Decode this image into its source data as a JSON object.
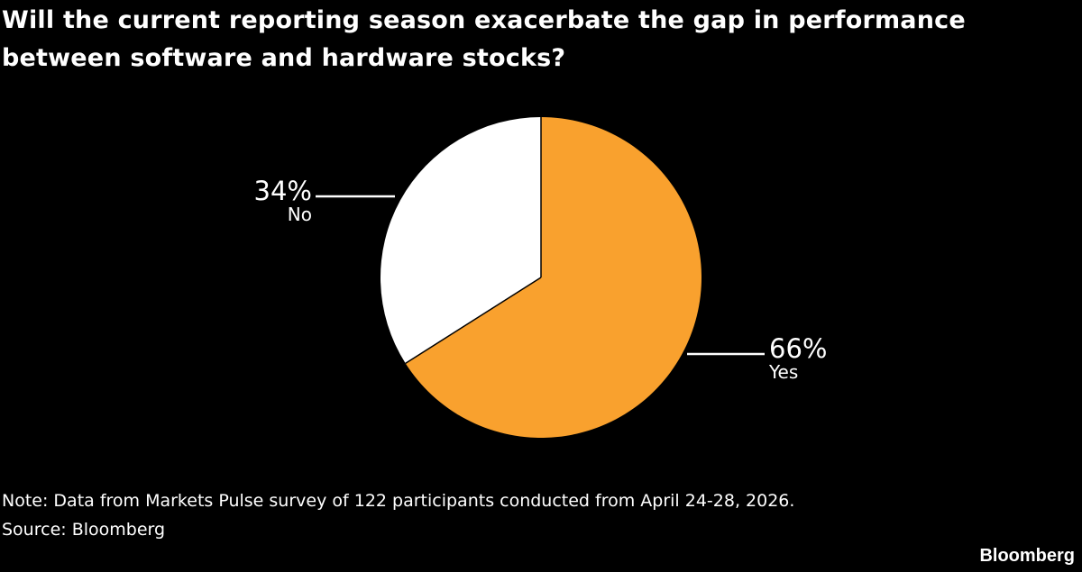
{
  "title": "Will the current reporting season exacerbate the gap in performance between software and hardware stocks?",
  "note": "Note: Data from Markets Pulse survey of 122 participants conducted from April 24-28, 2026.",
  "source": "Source: Bloomberg",
  "brand": "Bloomberg",
  "chart_data": {
    "type": "pie",
    "title": "Will the current reporting season exacerbate the gap in performance between software and hardware stocks?",
    "slices": [
      {
        "label": "Yes",
        "value": 66,
        "value_label": "66%",
        "color": "#F9A12E"
      },
      {
        "label": "No",
        "value": 34,
        "value_label": "34%",
        "color": "#FFFFFF"
      }
    ],
    "start": "12 o'clock, clockwise",
    "background": "#000000"
  }
}
